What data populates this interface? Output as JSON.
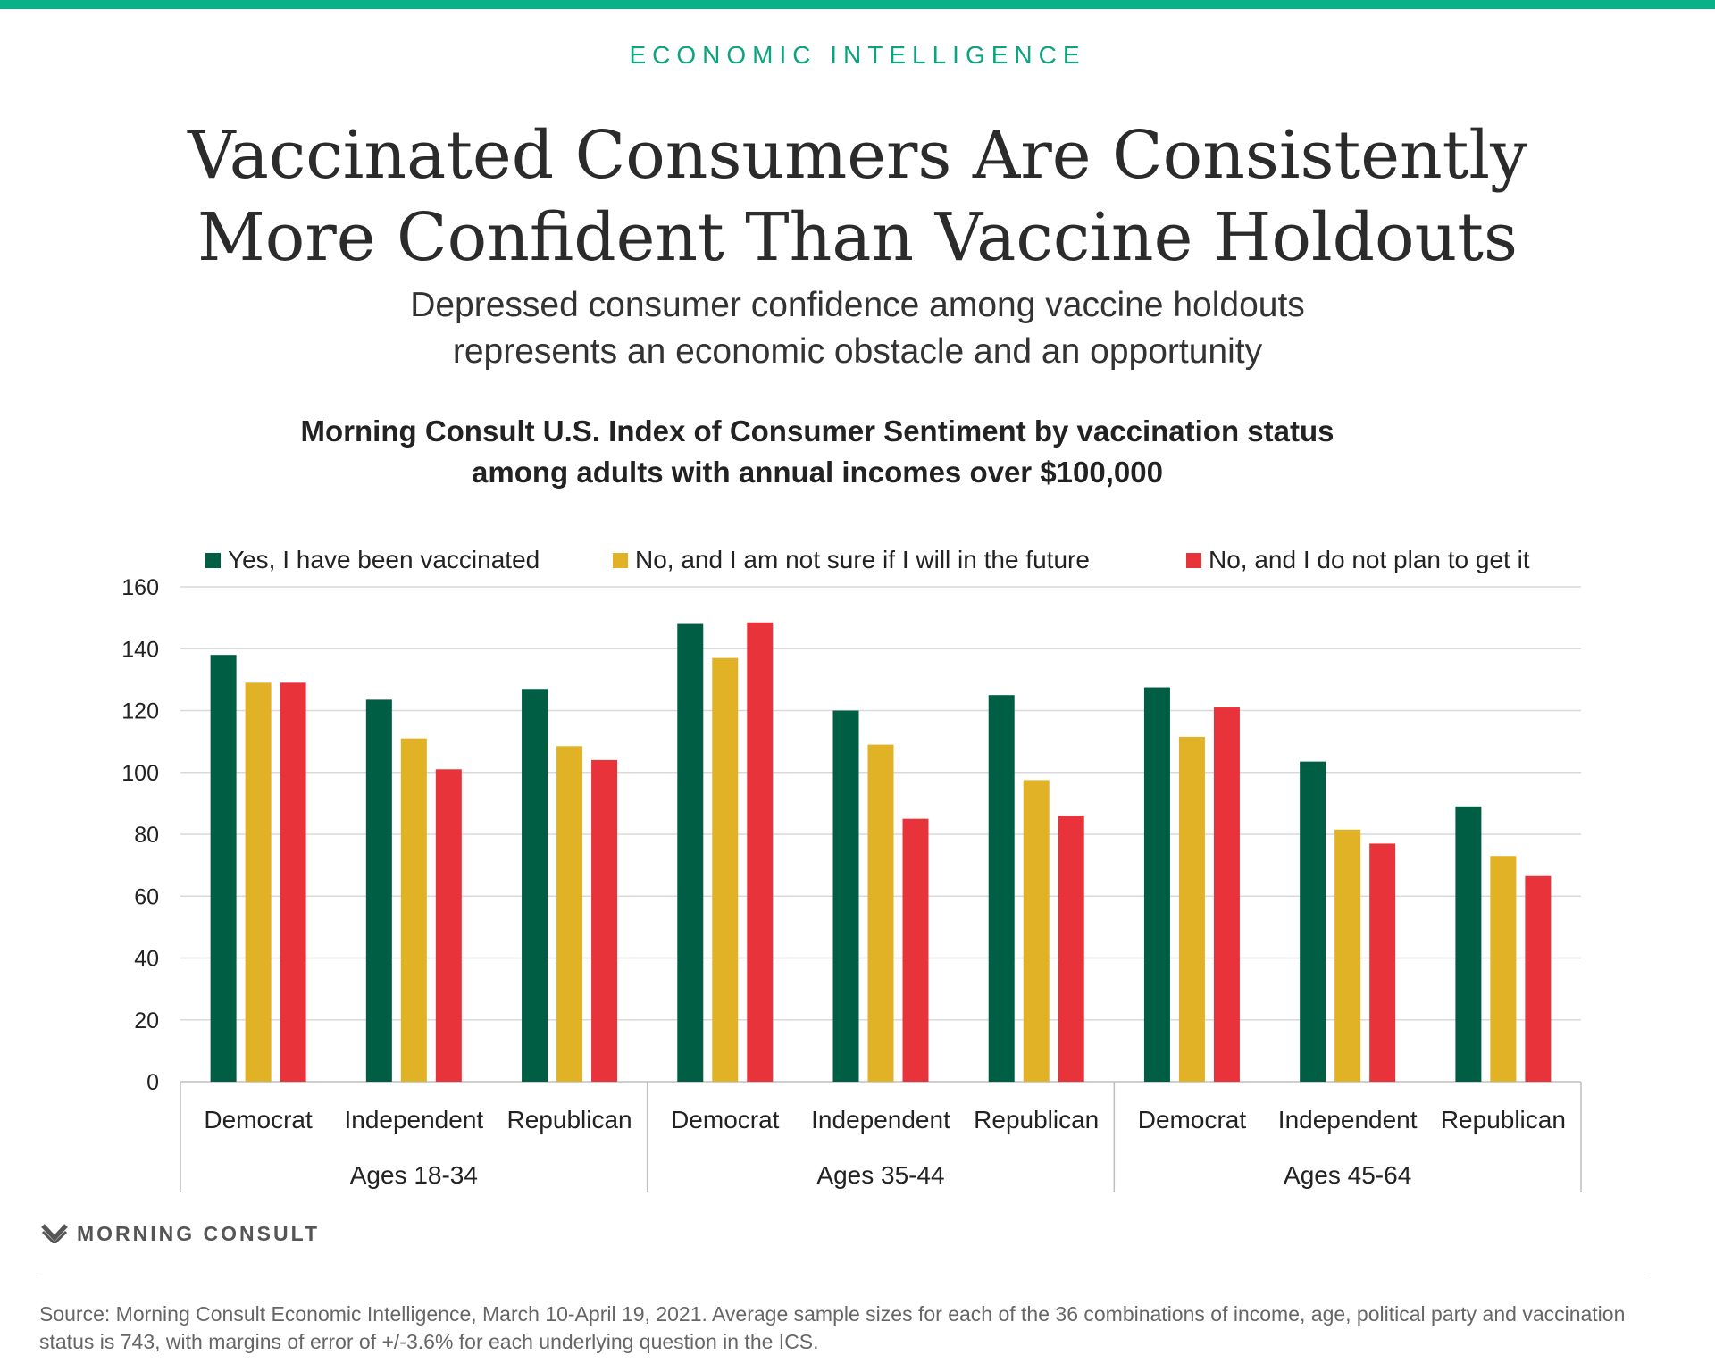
{
  "header": {
    "kicker": "ECONOMIC INTELLIGENCE",
    "title_line1": "Vaccinated Consumers Are Consistently",
    "title_line2": "More Confident Than Vaccine Holdouts",
    "subtitle_line1": "Depressed consumer confidence among vaccine holdouts",
    "subtitle_line2": "represents an economic obstacle and an opportunity",
    "accent_color": "#0ab087"
  },
  "chart_data": {
    "type": "bar",
    "title_line1": "Morning Consult U.S. Index of Consumer Sentiment by vaccination status",
    "title_line2": "among adults with annual incomes over $100,000",
    "xlabel": "",
    "ylabel": "",
    "ylim": [
      0,
      160
    ],
    "yticks": [
      0,
      20,
      40,
      60,
      80,
      100,
      120,
      140,
      160
    ],
    "grid": true,
    "legend_position": "top",
    "groups": [
      {
        "label": "Ages 18-34",
        "categories": [
          "Democrat",
          "Independent",
          "Republican"
        ]
      },
      {
        "label": "Ages 35-44",
        "categories": [
          "Democrat",
          "Independent",
          "Republican"
        ]
      },
      {
        "label": "Ages 45-64",
        "categories": [
          "Democrat",
          "Independent",
          "Republican"
        ]
      }
    ],
    "series": [
      {
        "name": "Yes, I have been vaccinated",
        "color": "#005e44",
        "values": [
          138,
          123.5,
          127,
          148,
          120,
          125,
          127.5,
          103.5,
          89
        ]
      },
      {
        "name": "No, and I am not sure if I will in the future",
        "color": "#e2b226",
        "values": [
          129,
          111,
          108.5,
          137,
          109,
          97.5,
          111.5,
          81.5,
          73
        ]
      },
      {
        "name": "No, and I do not plan to get it",
        "color": "#e8333a",
        "values": [
          129,
          101,
          104,
          148.5,
          85,
          86,
          121,
          77,
          66.5
        ]
      }
    ]
  },
  "footer": {
    "brand": "MORNING CONSULT",
    "source": "Source: Morning Consult Economic Intelligence, March 10-April 19, 2021.  Average sample sizes for each of the 36 combinations of income, age, political party and vaccination status is 743, with margins of error of +/-3.6% for each underlying question in the ICS."
  }
}
